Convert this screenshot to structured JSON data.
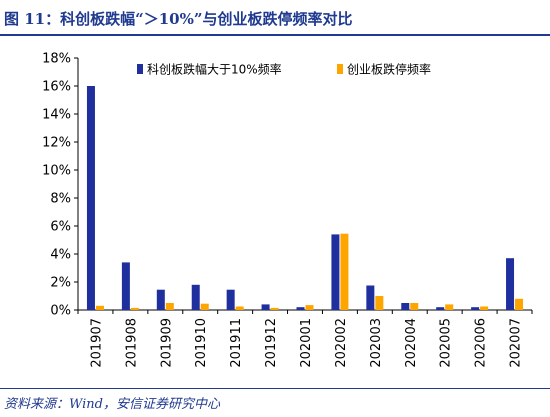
{
  "title": "图 11：科创板跌幅“＞10%”与创业板跌停频率对比",
  "source": "资料来源：Wind，安信证券研究中心",
  "colors": {
    "series1": "#1f2f9e",
    "series2": "#ffa500",
    "accent": "#1f3a8f"
  },
  "chart_data": {
    "type": "bar",
    "categories": [
      "201907",
      "201908",
      "201909",
      "201910",
      "201911",
      "201912",
      "202001",
      "202002",
      "202003",
      "202004",
      "202005",
      "202006",
      "202007"
    ],
    "series": [
      {
        "name": "科创板跌幅大于10%频率",
        "values": [
          16.0,
          3.4,
          1.45,
          1.8,
          1.45,
          0.4,
          0.2,
          5.4,
          1.75,
          0.5,
          0.2,
          0.2,
          3.7
        ]
      },
      {
        "name": "创业板跌停频率",
        "values": [
          0.3,
          0.15,
          0.5,
          0.45,
          0.25,
          0.15,
          0.35,
          5.45,
          1.0,
          0.5,
          0.4,
          0.25,
          0.8
        ]
      }
    ],
    "ylim": [
      0,
      18
    ],
    "yticks": [
      "0%",
      "2%",
      "4%",
      "6%",
      "8%",
      "10%",
      "12%",
      "14%",
      "16%",
      "18%"
    ],
    "ytick_values": [
      0,
      2,
      4,
      6,
      8,
      10,
      12,
      14,
      16,
      18
    ],
    "legend": "top-right",
    "grid": false
  }
}
